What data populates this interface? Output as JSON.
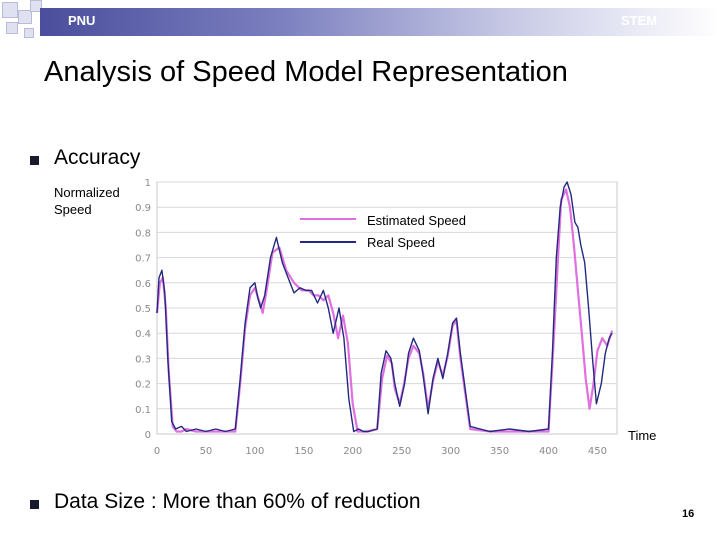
{
  "header": {
    "left_label": "PNU",
    "right_label": "STEM"
  },
  "slide": {
    "title": "Analysis of Speed Model Representation",
    "bullet1": "Accuracy",
    "bullet2": "Data Size : More than 60% of reduction",
    "page_number": "16"
  },
  "colors": {
    "estimated": "#e070e0",
    "real": "#222a80",
    "header_start": "#4a4e9c"
  },
  "chart_data": {
    "type": "line",
    "title": "",
    "xlabel": "Time",
    "ylabel": "Normalized Speed",
    "xlim": [
      0,
      470
    ],
    "ylim": [
      0,
      1
    ],
    "x_ticks": [
      0,
      50,
      100,
      150,
      200,
      250,
      300,
      350,
      400,
      450
    ],
    "y_ticks": [
      0,
      0.1,
      0.2,
      0.3,
      0.4,
      0.5,
      0.6,
      0.7,
      0.8,
      0.9,
      1
    ],
    "y_tick_labels": [
      "0",
      "0.1",
      "0.2",
      "0.3",
      "0.4",
      "0.5",
      "0.6",
      "0.7",
      "0.8",
      "0.9",
      "1"
    ],
    "legend": [
      "Estimated Speed",
      "Real Speed"
    ],
    "legend_position": "top-center",
    "series": [
      {
        "name": "Estimated Speed",
        "x": [
          0,
          3,
          6,
          9,
          12,
          16,
          20,
          25,
          30,
          40,
          50,
          60,
          70,
          80,
          85,
          90,
          95,
          100,
          105,
          108,
          112,
          118,
          125,
          132,
          140,
          148,
          155,
          160,
          165,
          170,
          175,
          180,
          185,
          190,
          195,
          200,
          205,
          210,
          215,
          225,
          230,
          235,
          240,
          243,
          248,
          252,
          257,
          262,
          268,
          272,
          277,
          282,
          287,
          292,
          297,
          302,
          306,
          310,
          320,
          340,
          360,
          380,
          400,
          405,
          410,
          413,
          418,
          422,
          426,
          430,
          434,
          438,
          442,
          446,
          450,
          455,
          460,
          465
        ],
        "values": [
          0.48,
          0.6,
          0.62,
          0.5,
          0.25,
          0.03,
          0.01,
          0.01,
          0.02,
          0.01,
          0.01,
          0.01,
          0.01,
          0.01,
          0.2,
          0.42,
          0.55,
          0.58,
          0.52,
          0.48,
          0.57,
          0.72,
          0.74,
          0.65,
          0.6,
          0.57,
          0.57,
          0.55,
          0.55,
          0.53,
          0.55,
          0.48,
          0.38,
          0.47,
          0.36,
          0.12,
          0.01,
          0.01,
          0.01,
          0.02,
          0.22,
          0.31,
          0.28,
          0.18,
          0.12,
          0.19,
          0.3,
          0.35,
          0.32,
          0.24,
          0.1,
          0.21,
          0.29,
          0.23,
          0.31,
          0.43,
          0.45,
          0.3,
          0.02,
          0.01,
          0.01,
          0.01,
          0.01,
          0.35,
          0.72,
          0.93,
          0.97,
          0.9,
          0.75,
          0.57,
          0.4,
          0.22,
          0.1,
          0.2,
          0.33,
          0.38,
          0.35,
          0.41
        ]
      },
      {
        "name": "Real Speed",
        "x": [
          0,
          2,
          5,
          8,
          11,
          15,
          19,
          25,
          30,
          40,
          50,
          60,
          70,
          80,
          85,
          90,
          95,
          100,
          103,
          106,
          110,
          116,
          122,
          128,
          134,
          140,
          146,
          152,
          158,
          164,
          170,
          175,
          180,
          186,
          191,
          196,
          201,
          206,
          211,
          216,
          225,
          229,
          234,
          239,
          243,
          248,
          253,
          257,
          262,
          268,
          272,
          277,
          282,
          287,
          292,
          297,
          302,
          306,
          310,
          320,
          340,
          360,
          380,
          400,
          404,
          408,
          412,
          416,
          419,
          423,
          427,
          430,
          433,
          437,
          441,
          445,
          449,
          454,
          458,
          462,
          465
        ],
        "values": [
          0.48,
          0.62,
          0.65,
          0.56,
          0.3,
          0.05,
          0.02,
          0.03,
          0.01,
          0.02,
          0.01,
          0.02,
          0.01,
          0.02,
          0.22,
          0.44,
          0.58,
          0.6,
          0.54,
          0.5,
          0.55,
          0.7,
          0.78,
          0.68,
          0.62,
          0.56,
          0.58,
          0.57,
          0.57,
          0.52,
          0.57,
          0.5,
          0.4,
          0.5,
          0.38,
          0.14,
          0.01,
          0.02,
          0.01,
          0.01,
          0.02,
          0.24,
          0.33,
          0.3,
          0.2,
          0.11,
          0.2,
          0.32,
          0.38,
          0.33,
          0.23,
          0.08,
          0.22,
          0.3,
          0.22,
          0.32,
          0.44,
          0.46,
          0.32,
          0.03,
          0.01,
          0.02,
          0.01,
          0.02,
          0.32,
          0.7,
          0.9,
          0.98,
          1.0,
          0.95,
          0.84,
          0.82,
          0.75,
          0.68,
          0.5,
          0.3,
          0.12,
          0.2,
          0.32,
          0.38,
          0.4
        ]
      }
    ]
  }
}
